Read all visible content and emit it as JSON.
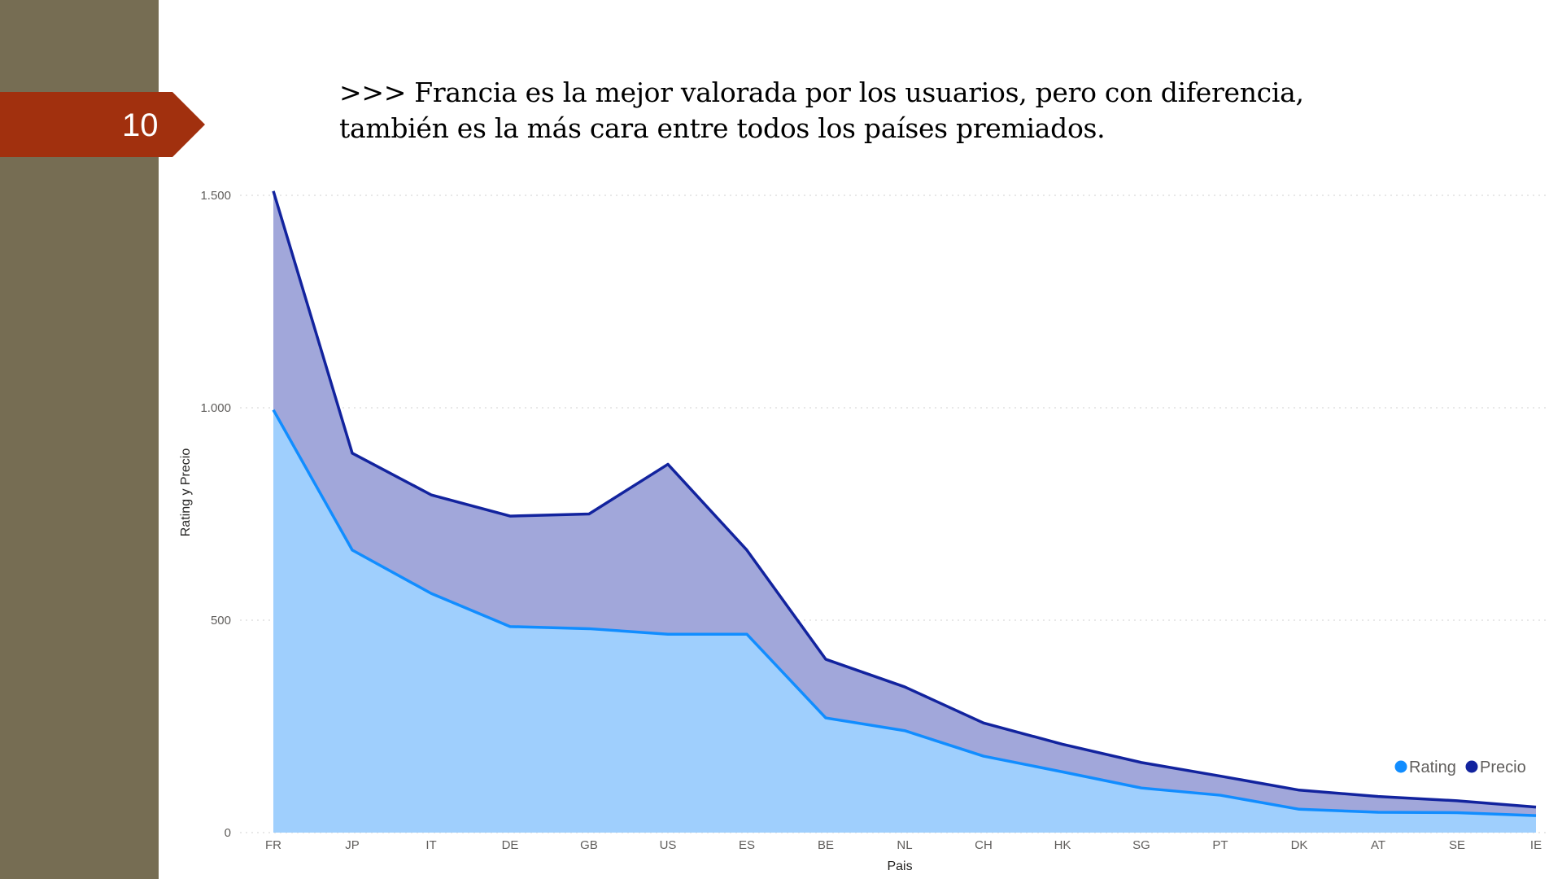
{
  "slide": {
    "number": "10",
    "headline": ">>> Francia es la mejor valorada por los usuarios, pero con diferencia, también es la más cara entre todos los países premiados."
  },
  "colors": {
    "sidebar": "#766d53",
    "badge": "#a1300e",
    "rating_line": "#118dff",
    "rating_fill": "#9fcffd",
    "precio_line": "#12239e",
    "precio_fill": "#a1a7da",
    "gridline": "#d9d9d9"
  },
  "chart_data": {
    "type": "area",
    "xlabel": "Pais",
    "ylabel": "Rating y Precio",
    "ylim": [
      0,
      1500
    ],
    "yticks": [
      0,
      500,
      1000,
      1500
    ],
    "ytick_labels": [
      "0",
      "500",
      "1.000",
      "1.500"
    ],
    "grid": true,
    "legend_position": "bottom-right",
    "categories": [
      "FR",
      "JP",
      "IT",
      "DE",
      "GB",
      "US",
      "ES",
      "BE",
      "NL",
      "CH",
      "HK",
      "SG",
      "PT",
      "DK",
      "AT",
      "SE",
      "IE"
    ],
    "series": [
      {
        "name": "Rating",
        "values": [
          995,
          665,
          563,
          485,
          480,
          467,
          467,
          270,
          240,
          180,
          143,
          105,
          88,
          55,
          48,
          47,
          40
        ]
      },
      {
        "name": "Precio",
        "values": [
          1510,
          893,
          795,
          745,
          750,
          867,
          665,
          408,
          343,
          258,
          208,
          165,
          133,
          100,
          85,
          75,
          60
        ]
      }
    ]
  }
}
